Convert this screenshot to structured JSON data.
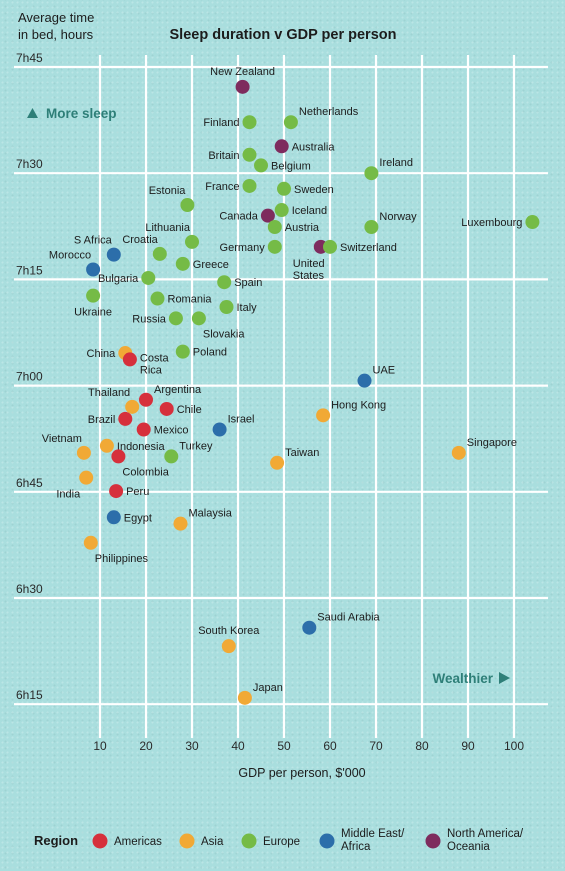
{
  "chart_data": {
    "type": "scatter",
    "title": "Sleep duration v GDP per person",
    "ylabel": "Average time in bed, hours",
    "ylabel_lines": [
      "Average time",
      "in bed, hours"
    ],
    "xlabel": "GDP per person, $'000",
    "xlim": [
      0,
      105
    ],
    "ylim_minutes": [
      435,
      465
    ],
    "x_ticks": [
      10,
      20,
      30,
      40,
      50,
      60,
      70,
      80,
      90,
      100
    ],
    "y_ticks": [
      {
        "minutes": 465,
        "label": "7h45"
      },
      {
        "minutes": 450,
        "label": "7h30"
      },
      {
        "minutes": 435,
        "label": "7h15"
      },
      {
        "minutes": 420,
        "label": "7h00"
      },
      {
        "minutes": 405,
        "label": "6h45"
      },
      {
        "minutes": 390,
        "label": "6h30"
      },
      {
        "minutes": 375,
        "label": "6h15"
      }
    ],
    "annotations": {
      "more_sleep": "More sleep",
      "wealthier": "Wealthier"
    },
    "legend": {
      "title": "Region",
      "placement": "bottom",
      "items": [
        {
          "key": "americas",
          "label_lines": [
            "Americas"
          ],
          "color": "#d6303c"
        },
        {
          "key": "asia",
          "label_lines": [
            "Asia"
          ],
          "color": "#f1a935"
        },
        {
          "key": "europe",
          "label_lines": [
            "Europe"
          ],
          "color": "#75bb46"
        },
        {
          "key": "mea",
          "label_lines": [
            "Middle East/",
            "Africa"
          ],
          "color": "#2c6eaa"
        },
        {
          "key": "nao",
          "label_lines": [
            "North America/",
            "Oceania"
          ],
          "color": "#7e2c5e"
        }
      ]
    },
    "points": [
      {
        "name_lines": [
          "New Zealand"
        ],
        "region": "nao",
        "x": 41,
        "y_minutes": 462.2,
        "label_pos": "above"
      },
      {
        "name_lines": [
          "Finland"
        ],
        "region": "europe",
        "x": 42.5,
        "y_minutes": 457.2,
        "label_pos": "left"
      },
      {
        "name_lines": [
          "Netherlands"
        ],
        "region": "europe",
        "x": 51.5,
        "y_minutes": 457.2,
        "label_pos": "upright"
      },
      {
        "name_lines": [
          "Australia"
        ],
        "region": "nao",
        "x": 49.5,
        "y_minutes": 453.8,
        "label_pos": "right"
      },
      {
        "name_lines": [
          "Britain"
        ],
        "region": "europe",
        "x": 42.5,
        "y_minutes": 452.6,
        "label_pos": "left"
      },
      {
        "name_lines": [
          "Belgium"
        ],
        "region": "europe",
        "x": 45,
        "y_minutes": 451.1,
        "label_pos": "right"
      },
      {
        "name_lines": [
          "Ireland"
        ],
        "region": "europe",
        "x": 69,
        "y_minutes": 450,
        "label_pos": "upright"
      },
      {
        "name_lines": [
          "France"
        ],
        "region": "europe",
        "x": 42.5,
        "y_minutes": 448.2,
        "label_pos": "left"
      },
      {
        "name_lines": [
          "Sweden"
        ],
        "region": "europe",
        "x": 50,
        "y_minutes": 447.8,
        "label_pos": "right"
      },
      {
        "name_lines": [
          "Estonia"
        ],
        "region": "europe",
        "x": 29,
        "y_minutes": 445.5,
        "label_pos": "aboveleft"
      },
      {
        "name_lines": [
          "Iceland"
        ],
        "region": "europe",
        "x": 49.5,
        "y_minutes": 444.8,
        "label_pos": "right"
      },
      {
        "name_lines": [
          "Canada"
        ],
        "region": "nao",
        "x": 46.5,
        "y_minutes": 444.0,
        "label_pos": "left"
      },
      {
        "name_lines": [
          "Austria"
        ],
        "region": "europe",
        "x": 48,
        "y_minutes": 442.4,
        "label_pos": "right"
      },
      {
        "name_lines": [
          "Norway"
        ],
        "region": "europe",
        "x": 69,
        "y_minutes": 442.4,
        "label_pos": "upright"
      },
      {
        "name_lines": [
          "Luxembourg"
        ],
        "region": "europe",
        "x": 104,
        "y_minutes": 443.1,
        "label_pos": "left"
      },
      {
        "name_lines": [
          "Lithuania"
        ],
        "region": "europe",
        "x": 30,
        "y_minutes": 440.3,
        "label_pos": "aboveleft"
      },
      {
        "name_lines": [
          "Croatia"
        ],
        "region": "europe",
        "x": 23,
        "y_minutes": 438.6,
        "label_pos": "aboveleft"
      },
      {
        "name_lines": [
          "S Africa"
        ],
        "region": "mea",
        "x": 13,
        "y_minutes": 438.5,
        "label_pos": "aboveleft"
      },
      {
        "name_lines": [
          "Germany"
        ],
        "region": "europe",
        "x": 48,
        "y_minutes": 439.6,
        "label_pos": "left"
      },
      {
        "name_lines": [
          "United",
          "States"
        ],
        "region": "nao",
        "x": 58,
        "y_minutes": 439.6,
        "label_pos": "belowleft"
      },
      {
        "name_lines": [
          "Switzerland"
        ],
        "region": "europe",
        "x": 60,
        "y_minutes": 439.6,
        "label_pos": "right"
      },
      {
        "name_lines": [
          "Greece"
        ],
        "region": "europe",
        "x": 28,
        "y_minutes": 437.2,
        "label_pos": "right"
      },
      {
        "name_lines": [
          "Morocco"
        ],
        "region": "mea",
        "x": 8.5,
        "y_minutes": 436.4,
        "label_pos": "aboveleft"
      },
      {
        "name_lines": [
          "Bulgaria"
        ],
        "region": "europe",
        "x": 20.5,
        "y_minutes": 435.2,
        "label_pos": "left"
      },
      {
        "name_lines": [
          "Spain"
        ],
        "region": "europe",
        "x": 37,
        "y_minutes": 434.6,
        "label_pos": "right"
      },
      {
        "name_lines": [
          "Romania"
        ],
        "region": "europe",
        "x": 22.5,
        "y_minutes": 432.3,
        "label_pos": "right"
      },
      {
        "name_lines": [
          "Ukraine"
        ],
        "region": "europe",
        "x": 8.5,
        "y_minutes": 432.7,
        "label_pos": "below"
      },
      {
        "name_lines": [
          "Italy"
        ],
        "region": "europe",
        "x": 37.5,
        "y_minutes": 431.1,
        "label_pos": "right"
      },
      {
        "name_lines": [
          "Russia"
        ],
        "region": "europe",
        "x": 26.5,
        "y_minutes": 429.5,
        "label_pos": "left"
      },
      {
        "name_lines": [
          "Slovakia"
        ],
        "region": "europe",
        "x": 31.5,
        "y_minutes": 429.5,
        "label_pos": "belowright"
      },
      {
        "name_lines": [
          "China"
        ],
        "region": "asia",
        "x": 15.5,
        "y_minutes": 424.6,
        "label_pos": "left"
      },
      {
        "name_lines": [
          "Costa",
          "Rica"
        ],
        "region": "americas",
        "x": 16.5,
        "y_minutes": 423.7,
        "label_pos": "right"
      },
      {
        "name_lines": [
          "Poland"
        ],
        "region": "europe",
        "x": 28,
        "y_minutes": 424.8,
        "label_pos": "right"
      },
      {
        "name_lines": [
          "UAE"
        ],
        "region": "mea",
        "x": 67.5,
        "y_minutes": 420.7,
        "label_pos": "upright"
      },
      {
        "name_lines": [
          "Argentina"
        ],
        "region": "americas",
        "x": 20,
        "y_minutes": 418.0,
        "label_pos": "upright"
      },
      {
        "name_lines": [
          "Thailand"
        ],
        "region": "asia",
        "x": 17,
        "y_minutes": 417.0,
        "label_pos": "aboveleft"
      },
      {
        "name_lines": [
          "Chile"
        ],
        "region": "americas",
        "x": 24.5,
        "y_minutes": 416.7,
        "label_pos": "right"
      },
      {
        "name_lines": [
          "Hong Kong"
        ],
        "region": "asia",
        "x": 58.5,
        "y_minutes": 415.8,
        "label_pos": "upright"
      },
      {
        "name_lines": [
          "Brazil"
        ],
        "region": "americas",
        "x": 15.5,
        "y_minutes": 415.3,
        "label_pos": "left"
      },
      {
        "name_lines": [
          "Israel"
        ],
        "region": "mea",
        "x": 36,
        "y_minutes": 413.8,
        "label_pos": "upright"
      },
      {
        "name_lines": [
          "Mexico"
        ],
        "region": "americas",
        "x": 19.5,
        "y_minutes": 413.8,
        "label_pos": "right"
      },
      {
        "name_lines": [
          "Vietnam"
        ],
        "region": "asia",
        "x": 6.5,
        "y_minutes": 410.5,
        "label_pos": "aboveleft"
      },
      {
        "name_lines": [
          "Indonesia"
        ],
        "region": "asia",
        "x": 11.5,
        "y_minutes": 411.5,
        "label_pos": "right"
      },
      {
        "name_lines": [
          "Singapore"
        ],
        "region": "asia",
        "x": 88,
        "y_minutes": 410.5,
        "label_pos": "upright"
      },
      {
        "name_lines": [
          "Colombia"
        ],
        "region": "americas",
        "x": 14,
        "y_minutes": 410.0,
        "label_pos": "belowright"
      },
      {
        "name_lines": [
          "Turkey"
        ],
        "region": "europe",
        "x": 25.5,
        "y_minutes": 410.0,
        "label_pos": "upright"
      },
      {
        "name_lines": [
          "Taiwan"
        ],
        "region": "asia",
        "x": 48.5,
        "y_minutes": 409.1,
        "label_pos": "upright"
      },
      {
        "name_lines": [
          "India"
        ],
        "region": "asia",
        "x": 7,
        "y_minutes": 407.0,
        "label_pos": "belowleft"
      },
      {
        "name_lines": [
          "Peru"
        ],
        "region": "americas",
        "x": 13.5,
        "y_minutes": 405.1,
        "label_pos": "right"
      },
      {
        "name_lines": [
          "Egypt"
        ],
        "region": "mea",
        "x": 13,
        "y_minutes": 401.4,
        "label_pos": "right"
      },
      {
        "name_lines": [
          "Malaysia"
        ],
        "region": "asia",
        "x": 27.5,
        "y_minutes": 400.5,
        "label_pos": "upright"
      },
      {
        "name_lines": [
          "Philippines"
        ],
        "region": "asia",
        "x": 8,
        "y_minutes": 397.8,
        "label_pos": "belowright"
      },
      {
        "name_lines": [
          "Saudi Arabia"
        ],
        "region": "mea",
        "x": 55.5,
        "y_minutes": 385.8,
        "label_pos": "upright"
      },
      {
        "name_lines": [
          "South Korea"
        ],
        "region": "asia",
        "x": 38,
        "y_minutes": 383.2,
        "label_pos": "above"
      },
      {
        "name_lines": [
          "Japan"
        ],
        "region": "asia",
        "x": 41.5,
        "y_minutes": 375.9,
        "label_pos": "upright"
      }
    ]
  }
}
